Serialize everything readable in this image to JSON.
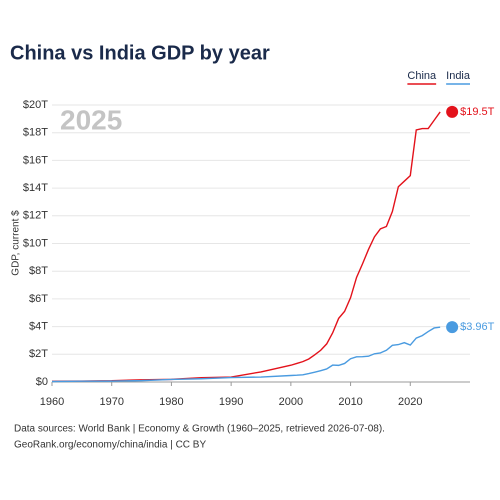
{
  "chart_data": {
    "type": "line",
    "title": "China vs India GDP by year",
    "year_label": "2025",
    "y_label": "GDP, current $",
    "source": [
      "Data sources: World Bank | Economy & Growth (1960–2025, retrieved 2026-07-08).",
      "GeoRank.org/economy/china/india | CC BY"
    ],
    "x": [
      1960,
      1965,
      1970,
      1975,
      1980,
      1985,
      1990,
      1995,
      2000,
      2001,
      2002,
      2003,
      2004,
      2005,
      2006,
      2007,
      2008,
      2009,
      2010,
      2011,
      2012,
      2013,
      2014,
      2015,
      2016,
      2017,
      2018,
      2019,
      2020,
      2021,
      2022,
      2023,
      2024,
      2025
    ],
    "series": [
      {
        "name": "China",
        "color": "#e3121b",
        "values": [
          0.06,
          0.07,
          0.09,
          0.16,
          0.19,
          0.31,
          0.36,
          0.73,
          1.21,
          1.34,
          1.47,
          1.66,
          1.96,
          2.29,
          2.75,
          3.55,
          4.59,
          5.1,
          6.09,
          7.55,
          8.53,
          9.57,
          10.48,
          11.06,
          11.23,
          12.31,
          14.1,
          14.5,
          14.9,
          18.2,
          18.3,
          18.3,
          18.9,
          19.5
        ],
        "value_labels": [
          null,
          null,
          null,
          null,
          null,
          null,
          null,
          null,
          null,
          null,
          null,
          null,
          null,
          null,
          null,
          null,
          null,
          null,
          null,
          null,
          null,
          null,
          null,
          null,
          null,
          null,
          null,
          null,
          null,
          null,
          null,
          null,
          null,
          "$19.5T"
        ]
      },
      {
        "name": "India",
        "color": "#4a9be0",
        "values": [
          0.037,
          0.06,
          0.063,
          0.099,
          0.186,
          0.235,
          0.32,
          0.36,
          0.47,
          0.49,
          0.52,
          0.61,
          0.71,
          0.82,
          0.94,
          1.22,
          1.2,
          1.34,
          1.68,
          1.82,
          1.83,
          1.86,
          2.04,
          2.1,
          2.29,
          2.65,
          2.7,
          2.84,
          2.67,
          3.17,
          3.35,
          3.64,
          3.9,
          3.96
        ],
        "value_labels": [
          null,
          null,
          null,
          null,
          null,
          null,
          null,
          null,
          null,
          null,
          null,
          null,
          null,
          null,
          null,
          null,
          null,
          null,
          null,
          null,
          null,
          null,
          null,
          null,
          null,
          null,
          null,
          null,
          null,
          null,
          null,
          null,
          null,
          "$3.96T"
        ]
      }
    ],
    "xlim": [
      1960,
      2030
    ],
    "xticks": [
      1960,
      1970,
      1980,
      1990,
      2000,
      2010,
      2020
    ],
    "ylim": [
      0,
      20
    ],
    "yticks": [
      {
        "value": 0,
        "label": "$0"
      },
      {
        "value": 2,
        "label": "$2T"
      },
      {
        "value": 4,
        "label": "$4T"
      },
      {
        "value": 6,
        "label": "$6T"
      },
      {
        "value": 8,
        "label": "$8T"
      },
      {
        "value": 10,
        "label": "$10T"
      },
      {
        "value": 12,
        "label": "$12T"
      },
      {
        "value": 14,
        "label": "$14T"
      },
      {
        "value": 16,
        "label": "$16T"
      },
      {
        "value": 18,
        "label": "$18T"
      },
      {
        "value": 20,
        "label": "$20T"
      }
    ],
    "grid": true
  }
}
